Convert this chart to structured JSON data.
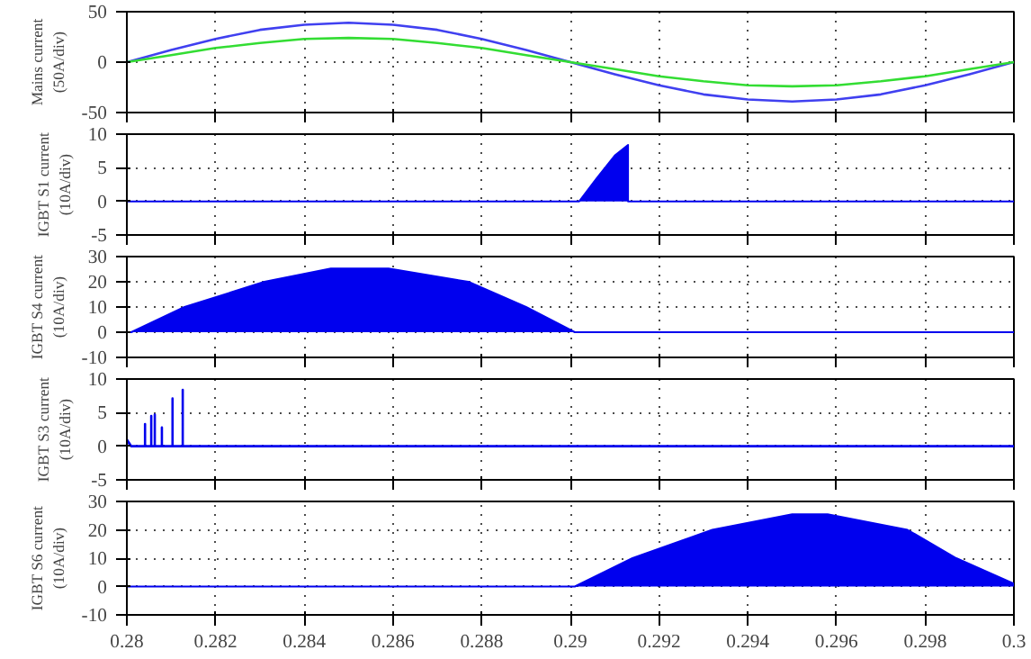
{
  "chart_data": [
    {
      "type": "line",
      "ylabel": "Mains current\n(50A/div)",
      "xlim": [
        0.28,
        0.3
      ],
      "xticks": [
        0.28,
        0.282,
        0.284,
        0.286,
        0.288,
        0.29,
        0.292,
        0.294,
        0.296,
        0.298,
        0.3
      ],
      "ylim": [
        -50,
        50
      ],
      "yticks": [
        -50,
        0,
        50
      ],
      "grid": true,
      "tick_labels": "y",
      "series": [
        {
          "color": "#4040f0",
          "x": [
            0.28,
            0.281,
            0.282,
            0.283,
            0.284,
            0.285,
            0.286,
            0.287,
            0.288,
            0.289,
            0.29,
            0.291,
            0.292,
            0.293,
            0.294,
            0.295,
            0.296,
            0.297,
            0.298,
            0.299,
            0.3
          ],
          "values": [
            0,
            12,
            23,
            32,
            37,
            39,
            37,
            32,
            23,
            12,
            0,
            -12,
            -23,
            -32,
            -37,
            -39,
            -37,
            -32,
            -23,
            -12,
            0
          ]
        },
        {
          "color": "#33dd33",
          "x": [
            0.28,
            0.281,
            0.282,
            0.283,
            0.284,
            0.285,
            0.286,
            0.287,
            0.288,
            0.289,
            0.29,
            0.291,
            0.292,
            0.293,
            0.294,
            0.295,
            0.296,
            0.297,
            0.298,
            0.299,
            0.3
          ],
          "values": [
            0,
            7,
            14,
            19,
            23,
            24,
            23,
            19,
            14,
            7,
            0,
            -7,
            -14,
            -19,
            -23,
            -24,
            -23,
            -19,
            -14,
            -7,
            0
          ]
        }
      ]
    },
    {
      "type": "area",
      "ylabel": "IGBT S1 current\n(10A/div)",
      "xlim": [
        0.28,
        0.3
      ],
      "xticks": [
        0.28,
        0.282,
        0.284,
        0.286,
        0.288,
        0.29,
        0.292,
        0.294,
        0.296,
        0.298,
        0.3
      ],
      "ylim": [
        -5,
        10
      ],
      "yticks": [
        -5,
        0,
        5,
        10
      ],
      "grid": true,
      "tick_labels": "y",
      "series": [
        {
          "color": "#0000ee",
          "x": [
            0.28,
            0.2902,
            0.2906,
            0.291,
            0.2913,
            0.2913,
            0.3
          ],
          "values": [
            0,
            0,
            3.5,
            6.8,
            8.4,
            0,
            0
          ]
        }
      ]
    },
    {
      "type": "area",
      "ylabel": "IGBT S4 current\n(10A/div)",
      "xlim": [
        0.28,
        0.3
      ],
      "xticks": [
        0.28,
        0.282,
        0.284,
        0.286,
        0.288,
        0.29,
        0.292,
        0.294,
        0.296,
        0.298,
        0.3
      ],
      "ylim": [
        -10,
        30
      ],
      "yticks": [
        -10,
        0,
        10,
        20,
        30
      ],
      "grid": true,
      "tick_labels": "y",
      "series": [
        {
          "color": "#0000ee",
          "x": [
            0.28,
            0.2801,
            0.2813,
            0.2831,
            0.2846,
            0.2859,
            0.2877,
            0.289,
            0.2901,
            0.3
          ],
          "values": [
            0,
            0,
            10,
            20,
            25.3,
            25.3,
            20,
            10,
            0,
            0
          ]
        }
      ]
    },
    {
      "type": "line",
      "ylabel": "IGBT S3 current\n(10A/div)",
      "xlim": [
        0.28,
        0.3
      ],
      "xticks": [
        0.28,
        0.282,
        0.284,
        0.286,
        0.288,
        0.29,
        0.292,
        0.294,
        0.296,
        0.298,
        0.3
      ],
      "ylim": [
        -5,
        10
      ],
      "yticks": [
        -5,
        0,
        5,
        10
      ],
      "grid": true,
      "tick_labels": "y",
      "series": [
        {
          "color": "#0000ee",
          "x": [
            0.28,
            0.28,
            0.2801,
            0.28041,
            0.28041,
            0.28041,
            0.28055,
            0.28055,
            0.28055,
            0.28063,
            0.28063,
            0.28063,
            0.28079,
            0.28079,
            0.28079,
            0.28103,
            0.28103,
            0.28103,
            0.28126,
            0.28126,
            0.28126,
            0.3
          ],
          "values": [
            0,
            1,
            0,
            0,
            3.3,
            0,
            0,
            4.5,
            0,
            0,
            4.7,
            0,
            0,
            2.8,
            0,
            0,
            7.1,
            0,
            0,
            8.4,
            0,
            0
          ]
        }
      ]
    },
    {
      "type": "area",
      "ylabel": "IGBT S6 current\n(10A/div)",
      "xlim": [
        0.28,
        0.3
      ],
      "xticks": [
        0.28,
        0.282,
        0.284,
        0.286,
        0.288,
        0.29,
        0.292,
        0.294,
        0.296,
        0.298,
        0.3
      ],
      "ylim": [
        -10,
        30
      ],
      "yticks": [
        -10,
        0,
        10,
        20,
        30
      ],
      "grid": true,
      "series": [
        {
          "color": "#0000ee",
          "x": [
            0.28,
            0.2901,
            0.2914,
            0.2932,
            0.295,
            0.2958,
            0.2976,
            0.2987,
            0.3
          ],
          "values": [
            0,
            0,
            10,
            20,
            25.5,
            25.5,
            20,
            10,
            1
          ]
        }
      ]
    }
  ]
}
